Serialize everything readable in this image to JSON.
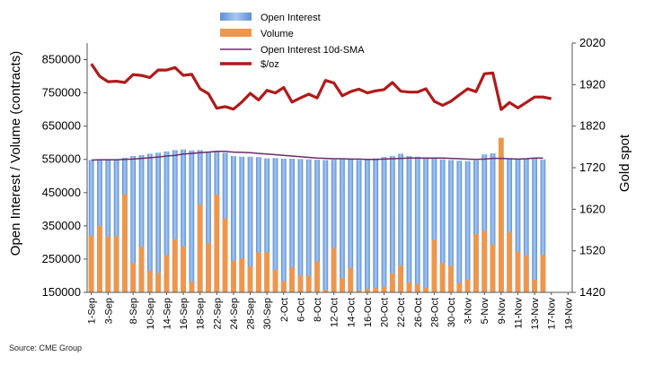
{
  "source": "Source: CME Group",
  "chart_data": {
    "type": "bar",
    "y_left_label": "Open Interest / Volume (contracts)",
    "y_right_label": "Gold spot",
    "y_left_range": [
      150000,
      900000
    ],
    "y_left_ticks": [
      "150000",
      "250000",
      "350000",
      "450000",
      "550000",
      "650000",
      "750000",
      "850000"
    ],
    "y_right_range": [
      1420,
      2020
    ],
    "y_right_ticks": [
      "1420",
      "1520",
      "1620",
      "1720",
      "1820",
      "1920",
      "2020"
    ],
    "x": [
      "1-Sep",
      "2-Sep",
      "3-Sep",
      "4-Sep",
      "7-Sep",
      "8-Sep",
      "9-Sep",
      "10-Sep",
      "11-Sep",
      "14-Sep",
      "15-Sep",
      "16-Sep",
      "17-Sep",
      "18-Sep",
      "21-Sep",
      "22-Sep",
      "23-Sep",
      "24-Sep",
      "25-Sep",
      "28-Sep",
      "29-Sep",
      "30-Sep",
      "1-Oct",
      "2-Oct",
      "5-Oct",
      "6-Oct",
      "7-Oct",
      "8-Oct",
      "9-Oct",
      "12-Oct",
      "13-Oct",
      "14-Oct",
      "15-Oct",
      "16-Oct",
      "19-Oct",
      "20-Oct",
      "21-Oct",
      "22-Oct",
      "23-Oct",
      "26-Oct",
      "27-Oct",
      "28-Oct",
      "29-Oct",
      "30-Oct",
      "2-Nov",
      "3-Nov",
      "4-Nov",
      "5-Nov",
      "6-Nov",
      "9-Nov",
      "10-Nov",
      "11-Nov",
      "12-Nov",
      "13-Nov",
      "16-Nov",
      "17-Nov",
      "18-Nov",
      "19-Nov"
    ],
    "x_tick_labels": [
      "1-Sep",
      "3-Sep",
      "8-Sep",
      "10-Sep",
      "14-Sep",
      "16-Sep",
      "18-Sep",
      "22-Sep",
      "24-Sep",
      "28-Sep",
      "30-Sep",
      "2-Oct",
      "6-Oct",
      "8-Oct",
      "12-Oct",
      "14-Oct",
      "16-Oct",
      "20-Oct",
      "22-Oct",
      "26-Oct",
      "28-Oct",
      "30-Oct",
      "3-Nov",
      "5-Nov",
      "9-Nov",
      "11-Nov",
      "13-Nov",
      "17-Nov",
      "19-Nov"
    ],
    "legend_position": "top-center",
    "series": [
      {
        "name": "Open Interest",
        "kind": "bar",
        "axis": "left",
        "color": "#7aa6e3",
        "values": [
          548000,
          548000,
          549000,
          550000,
          555000,
          560000,
          563000,
          567000,
          570000,
          574000,
          578000,
          580000,
          577000,
          578000,
          573000,
          575000,
          570000,
          560000,
          558000,
          558000,
          557000,
          553000,
          554000,
          552000,
          552000,
          551000,
          550000,
          549000,
          548000,
          549000,
          550000,
          550000,
          548000,
          549000,
          553000,
          557000,
          560000,
          567000,
          560000,
          558000,
          556000,
          553000,
          550000,
          548000,
          546000,
          545000,
          547000,
          565000,
          568000,
          560000,
          552000,
          551000,
          552000,
          553000,
          550000,
          null,
          null,
          null
        ]
      },
      {
        "name": "Volume",
        "kind": "bar",
        "axis": "left",
        "color": "#f0964a",
        "values": [
          320000,
          350000,
          318000,
          318000,
          445000,
          238000,
          287000,
          215000,
          208000,
          262000,
          310000,
          288000,
          182000,
          413000,
          298000,
          443000,
          372000,
          245000,
          252000,
          228000,
          270000,
          270000,
          217000,
          183000,
          225000,
          200000,
          200000,
          243000,
          158000,
          283000,
          193000,
          223000,
          155000,
          160000,
          163000,
          167000,
          207000,
          230000,
          180000,
          175000,
          163000,
          308000,
          238000,
          230000,
          178000,
          188000,
          325000,
          335000,
          293000,
          615000,
          330000,
          272000,
          262000,
          188000,
          263000,
          null,
          null,
          null
        ]
      },
      {
        "name": "Open Interest 10d-SMA",
        "kind": "line",
        "axis": "left",
        "color": "#6b2c6b",
        "values": [
          548000,
          549000,
          549000,
          549000,
          550000,
          551000,
          553000,
          555000,
          557000,
          560000,
          562000,
          566000,
          568000,
          570000,
          572000,
          574000,
          574000,
          572000,
          571000,
          570000,
          568000,
          566000,
          564000,
          562000,
          560000,
          558000,
          556000,
          554000,
          553000,
          552000,
          552000,
          551000,
          551000,
          550000,
          550000,
          551000,
          552000,
          553000,
          554000,
          554000,
          554000,
          554000,
          554000,
          553000,
          552000,
          551000,
          550000,
          551000,
          553000,
          553000,
          552000,
          551000,
          552000,
          554000,
          554000,
          null,
          null,
          null
        ]
      },
      {
        "name": "$/oz",
        "kind": "line",
        "axis": "right",
        "color": "#b01a1a",
        "values": [
          1970,
          1940,
          1927,
          1928,
          1925,
          1944,
          1942,
          1937,
          1955,
          1955,
          1961,
          1942,
          1945,
          1910,
          1898,
          1863,
          1867,
          1861,
          1878,
          1899,
          1883,
          1906,
          1900,
          1913,
          1878,
          1888,
          1897,
          1888,
          1930,
          1924,
          1893,
          1903,
          1909,
          1900,
          1905,
          1908,
          1925,
          1904,
          1902,
          1902,
          1910,
          1880,
          1870,
          1880,
          1895,
          1910,
          1903,
          1946,
          1948,
          1860,
          1877,
          1864,
          1877,
          1890,
          1890,
          1886,
          null,
          null
        ]
      }
    ]
  }
}
